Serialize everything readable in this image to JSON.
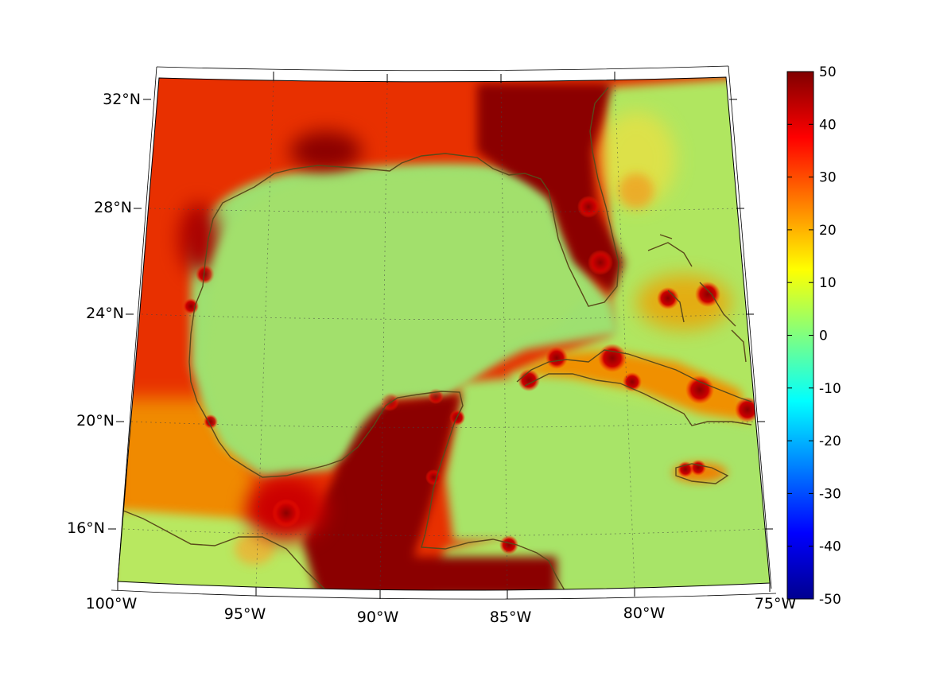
{
  "map": {
    "lat_labels": [
      "32°N",
      "28°N",
      "24°N",
      "20°N",
      "16°N"
    ],
    "lon_labels": [
      "100°W",
      "95°W",
      "90°W",
      "85°W",
      "80°W",
      "75°W"
    ]
  },
  "colorbar": {
    "tick_labels": [
      "50",
      "40",
      "30",
      "20",
      "10",
      "0",
      "-10",
      "-20",
      "-30",
      "-40",
      "-50"
    ],
    "min": -50,
    "max": 50,
    "colormap": "jet"
  },
  "colors": {
    "coastline": "#5a4a1a",
    "land_hot": "#8b0000",
    "sea_base": "#a8e060"
  }
}
